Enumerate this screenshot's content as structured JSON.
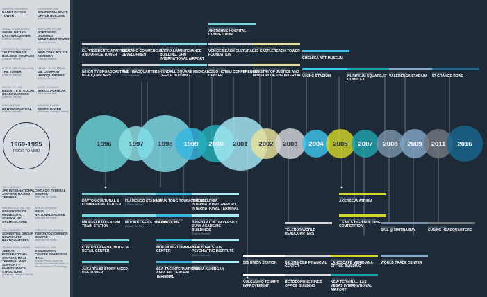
{
  "prior": {
    "years": "1969-1995",
    "subtitle": "PRIOR TO NBBJ",
    "top_items": [
      {
        "loc": "JAKARTA, INDONESIA",
        "name": "KARET OFFICE TOWER",
        "note": ""
      },
      {
        "loc": "CALIFORNIA, USA",
        "name": "CALIFORNIA STATE OFFICE BUILDING",
        "note": "(Obie for Beckett)"
      },
      {
        "loc": "SEOUL, SOUTH KOREA",
        "name": "SEOUL BROAD-CASTING CENTER",
        "note": "(Obie for Beckett)"
      },
      {
        "loc": "NEW YORK, NY, USA",
        "name": "PORTOFINO DIAMOND APARTMENT TOWER",
        "note": "(Obie for Beckett)"
      },
      {
        "loc": "TORONTO, ON, CANADA",
        "name": "TIP TOP TAILOR BUILDING COMPLEX",
        "note": "(Obie for Beckett)"
      },
      {
        "loc": "NEW YORK, NY, USA",
        "name": "NEW YORK POLICE ACADEMY",
        "note": "(Obie for Beckett)"
      },
      {
        "loc": "KUALA LUMPUR, MALAYSIA",
        "name": "TRB TOWER",
        "note": "(Obie for Beckett)"
      },
      {
        "loc": "JEDDAH, SAUDI ARABIA",
        "name": "OIL COMPANY HEADQUARTERS",
        "note": "(Obie for Beckett)"
      },
      {
        "loc": "MILTON, CT, USA",
        "name": "DELOITTE &TOUCHE HEADQUARTERS",
        "note": "(Obie for Beckett)"
      },
      {
        "loc": "QUITO, ECUADOR",
        "name": "BANCO POPULAR",
        "note": "(Obie for Beckett)"
      },
      {
        "loc": "OSLO, NORWAY",
        "name": "NEW MASHORTIAL",
        "note": "(Obie for Beckett)"
      },
      {
        "loc": "CHICAGO, IL, USA",
        "name": "SEARS TOWER",
        "note": "(Skidmore, Owings & Merrill)"
      }
    ],
    "bottom_items": [
      {
        "loc": "OSLO, NORWAY",
        "name": "JFK INTERNATIONAL AIRPORT, NAJWM TERMINAL",
        "note": ""
      },
      {
        "loc": "CHICAGO, IL, USA",
        "name": "CHICAGO FEDERAL CENTER",
        "note": "(Mies van der Rohe)"
      },
      {
        "loc": "MINNEAPOLIS, MN, USA",
        "name": "UNIVERSITY OF MINNESOTA, SCHOOL OF ARCHITECTURE",
        "note": ""
      },
      {
        "loc": "BERLIN, GERMANY",
        "name": "NEUE NATIONALGALERIE",
        "note": "(Mies van der Rohe)"
      },
      {
        "loc": "OSLO, NORWAY",
        "name": "SCHIBSTED GROUP NEWSPAPER HEADQUARTERS",
        "note": ""
      },
      {
        "loc": "TORONTO, ON, CANADA",
        "name": "TORONTO DOMINION CENTRE",
        "note": "(Mies van der Rohe)"
      },
      {
        "loc": "JEDDAH, SAUDI ARABIA",
        "name": "JEDDAH INTERNATIONAL AIRPORT, HAJJ TERMINAL AND SUPPORT + MAINTENANCE STRUCTURE",
        "note": "(Skidmore, Owings & Merrill)"
      },
      {
        "loc": "CHICAGO, IL, USA",
        "name": "CONVENTION CENTRE EXHIBITION HALL",
        "note": "(Partner Photo, project for master of architecture thesis at Illinois Institute of Technology)"
      }
    ]
  },
  "years": [
    {
      "label": "1996",
      "color": "#6fd6da"
    },
    {
      "label": "1997",
      "color": "#8fe0e2"
    },
    {
      "label": "1998",
      "color": "#7fdde8"
    },
    {
      "label": "1999",
      "color": "#35b6e0"
    },
    {
      "label": "2000",
      "color": "#23b0b8"
    },
    {
      "label": "2001",
      "color": "#a8ecf7"
    },
    {
      "label": "2002",
      "color": "#e9e29b"
    },
    {
      "label": "2003",
      "color": "#d4d6d9"
    },
    {
      "label": "2004",
      "color": "#3dc4ec"
    },
    {
      "label": "2005",
      "color": "#d2d62a"
    },
    {
      "label": "2007",
      "color": "#1fa4ac"
    },
    {
      "label": "2008",
      "color": "#7a92a8"
    },
    {
      "label": "2009",
      "color": "#84a8c8"
    },
    {
      "label": "2011",
      "color": "#727880"
    },
    {
      "label": "2016",
      "color": "#19668e"
    }
  ],
  "projects_top": [
    {
      "loc": "MANILA, PHILIPPINES",
      "name": "EL PRESIDENTE APARTMENT AND OFFICE TOWER",
      "note": "",
      "color": "#d4d6d9"
    },
    {
      "loc": "JOHOR, MALAYSIA",
      "name": "STULANG COMMERCIAL DEVELOPMENT",
      "note": "",
      "color": "#d4d6d9"
    },
    {
      "loc": "TOKYO, JAPAN",
      "name": "NIHON TV BROADCASTING HEADQUARTERS",
      "note": "",
      "color": "#d4d6d9"
    },
    {
      "loc": "JAKARTA, INDONESIA",
      "name": "PMB HEADQUARTERS",
      "note": "(Obie for Beckett)",
      "color": "#d4d6d9"
    },
    {
      "loc": "DALLAS, TX, USA",
      "name": "ARRIVAL/MAINTENANCE BUILDING, DFW INTERNATIONAL AIRPORT",
      "note": "",
      "color": "#7fdde8"
    },
    {
      "loc": "CAMBRIDGE, MA, USA",
      "name": "KENDALL SQUARE MEDICAL OFFICE BUILDING",
      "note": "",
      "color": "#7fdde8"
    },
    {
      "loc": "LOS ANGELES, CA, USA",
      "name": "VENICE BEACH CULTURAL FOUNDATION",
      "note": "",
      "color": "#d4d6d9"
    },
    {
      "loc": "OSLO, NORWAY",
      "name": "OSLO HOTEL/ CONFERENCE CENTER",
      "note": "",
      "color": "#d4d6d9"
    },
    {
      "loc": "LØRENSKOG, NORWAY",
      "name": "AKERSHUS HOSPITAL COMPETITION",
      "note": "",
      "color": "#6fd6da"
    },
    {
      "loc": "SYDNEY, AUSTRALIA",
      "name": "183 CASTLEREAGH TOWER",
      "note": "",
      "color": "#e9e29b"
    },
    {
      "loc": "THE HAGUE, NETHERLANDS",
      "name": "MINISTRY OF JUSTICE AND MINISTRY OF THE INTERIOR",
      "note": "",
      "color": "#e9e29b"
    },
    {
      "loc": "NEW YORK, NY, USA",
      "name": "CHELSEA ART MUSEUM",
      "note": "",
      "color": "#3dc4ec"
    },
    {
      "loc": "STAVANGER, NORWAY",
      "name": "VIKING STADIUM",
      "note": "",
      "color": "#3dc4ec"
    },
    {
      "loc": "SEOUL, SOUTH KOREA",
      "name": "NURITKUM SQUARE, IT COMPLEX",
      "note": "",
      "color": "#1fa4ac"
    },
    {
      "loc": "OSLO, NORWAY",
      "name": "VALERENGA STADIUM",
      "note": "",
      "color": "#84a8c8"
    },
    {
      "loc": "SINGAPORE",
      "name": "57 GRANGE ROAD",
      "note": "",
      "color": "#19668e"
    }
  ],
  "projects_bottom": [
    {
      "loc": "DAYTON, OH, USA",
      "name": "DAYTON CULTURAL & COMMERCIAL CENTER",
      "note": "",
      "color": "#6fd6da"
    },
    {
      "loc": "RIO DE JANEIRO, BRAZIL",
      "name": "FLAMENGO STADIUM",
      "note": "(Obie for Beckett)",
      "color": "#7fdde8"
    },
    {
      "loc": "JAKARTA, INDONESIA",
      "name": "MANGGARAI CENTRAL TRAIN STATION",
      "note": "",
      "color": "#6fd6da"
    },
    {
      "loc": "JAKARTA, INDONESIA",
      "name": "MOZADI OFFICE BUILDING",
      "note": "(Obie for Beckett)",
      "color": "#7fdde8"
    },
    {
      "loc": "CURITIBA, BRAZIL",
      "name": "CURITIBA ARENA, HOTEL & RETAIL CENTER",
      "note": "",
      "color": "#6fd6da"
    },
    {
      "loc": "JAKARTA, INDONESIA",
      "name": "JAKARTA 80-STORY MIXED-USE TOWER",
      "note": "",
      "color": "#6fd6da"
    },
    {
      "loc": "HONG KONG, CHINA",
      "name": "KWUN TONG TOWN CENTRE",
      "note": "",
      "color": "#35b6e0"
    },
    {
      "loc": "SEOUL, SOUTH KOREA",
      "name": "SEOUL DOME",
      "note": "",
      "color": "#35b6e0"
    },
    {
      "loc": "SEOUL, SOUTH KOREA",
      "name": "MOK-DONG COMMERCIAL CENTER",
      "note": "",
      "color": "#35b6e0"
    },
    {
      "loc": "SEATTLE, WA, USA",
      "name": "SEA-TAC INTERNATIONAL AIRPORT, CENTRAL TERMINAL",
      "note": "",
      "color": "#35b6e0"
    },
    {
      "loc": "PHILADELPHIA, PA, USA",
      "name": "PHILADELPHIA INTERNATIONAL AIRPORT, INTERNATIONAL TERMINAL",
      "note": "",
      "color": "#a8ecf7"
    },
    {
      "loc": "BINGHAMTON, NY, USA",
      "name": "BINGHAMTON UNIVERSITY, SUNY ACADEMIC BUILDINGS",
      "note": "(Obie for Beckett)",
      "color": "#a8ecf7"
    },
    {
      "loc": "NEW YORK, NY, USA",
      "name": "NEW YORK STATE PSYCHIATRIC INSTITUTE",
      "note": "(Obie for Beckett)",
      "color": "#a8ecf7"
    },
    {
      "loc": "JAKARTA, INDONESIA",
      "name": "GRAHA KUNINGAN",
      "note": "",
      "color": "#a8ecf7"
    },
    {
      "loc": "SEATTLE, WA, USA",
      "name": "505 UNION STATION",
      "note": "",
      "color": "#ffffff"
    },
    {
      "loc": "SEATTLE, WA, USA",
      "name": "VULCAN HQ TENANT IMPROVEMENT",
      "note": "",
      "color": "#ffffff"
    },
    {
      "loc": "STAVANGER, NORWAY",
      "name": "TELENOR WORLD HEADQUARTERS",
      "note": "",
      "color": "#d4d6d9"
    },
    {
      "loc": "BEIJING, CHINA",
      "name": "BEIJING CBD FINANCIAL CENTER",
      "note": "",
      "color": "#d4d6d9"
    },
    {
      "loc": "MILAN, ITALY",
      "name": "BERODONONE-HINES OFFICE BUILDING",
      "note": "",
      "color": "#d4d6d9"
    },
    {
      "loc": "OSLO, NORWAY",
      "name": "AKERSEVA ATRIUM",
      "note": "",
      "color": "#d2d62a"
    },
    {
      "loc": "DUBAI, UNITED ARAB EMIRATES",
      "name": "1.5 MILE HIGH BUILDING COMPETITION",
      "note": "",
      "color": "#d2d62a"
    },
    {
      "loc": "BARCELONA, SPAIN",
      "name": "LANDSCAPE MERIDIANA OFFICE BUILDING",
      "note": "",
      "color": "#d2d62a"
    },
    {
      "loc": "LAS VEGAS, NV, USA",
      "name": "NEW TERMINAL, LAS VEGAS INTERNATIONAL AIRPORT",
      "note": "",
      "color": "#1fa4ac"
    },
    {
      "loc": "SINGAPORE",
      "name": "SAIL @ MARINA BAY",
      "note": "",
      "color": "#7a92a8"
    },
    {
      "loc": "NEW YORK, NY, USA",
      "name": "WORLD TRADE CENTER",
      "note": "",
      "color": "#84a8c8"
    },
    {
      "loc": "NANJING, CHINA",
      "name": "SUNING HEADQUARTERS",
      "note": "",
      "color": "#727880"
    }
  ]
}
